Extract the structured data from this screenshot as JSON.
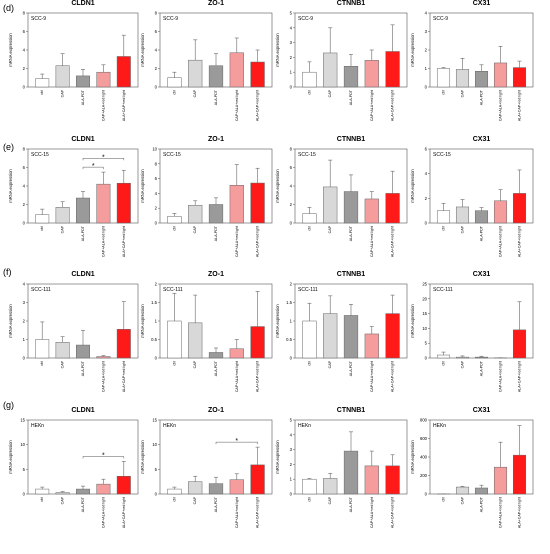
{
  "row_labels": [
    "(d)",
    "(e)",
    "(f)",
    "(g)"
  ],
  "categories": [
    "ctrl",
    "CAP",
    "ALA-PDT",
    "CAP+ALA+red light",
    "ALA+CAP+red light"
  ],
  "ylabel": "mRNA expression",
  "colors": [
    "#ffffff",
    "#d8d8d8",
    "#9a9a9a",
    "#f59c9c",
    "#ff1a1a"
  ],
  "chart_data": [
    {
      "type": "bar",
      "row": 0,
      "col": 0,
      "title": "CLDN1",
      "line": "SCC-9",
      "categories": [
        "ctrl",
        "CAP",
        "ALA-PDT",
        "CAP+ALA+red light",
        "ALA+CAP+red light"
      ],
      "values": [
        0.9,
        2.3,
        1.2,
        1.6,
        3.3
      ],
      "errors": [
        0.5,
        1.3,
        0.7,
        0.8,
        2.3
      ],
      "ylim": [
        0,
        8
      ],
      "yticks": [
        0,
        2,
        4,
        6,
        8
      ],
      "sig": []
    },
    {
      "type": "bar",
      "row": 0,
      "col": 1,
      "title": "ZO-1",
      "line": "SCC-9",
      "categories": [
        "ctrl",
        "CAP",
        "ALA-PDT",
        "CAP+ALA+red light",
        "ALA+CAP+red light"
      ],
      "values": [
        1.0,
        2.9,
        2.3,
        3.7,
        2.7
      ],
      "errors": [
        0.6,
        2.2,
        1.3,
        1.6,
        1.3
      ],
      "ylim": [
        0,
        8
      ],
      "yticks": [
        0,
        2,
        4,
        6,
        8
      ],
      "sig": []
    },
    {
      "type": "bar",
      "row": 0,
      "col": 2,
      "title": "CTNNB1",
      "line": "SCC-9",
      "categories": [
        "ctrl",
        "CAP",
        "ALA-PDT",
        "CAP+ALA+red light",
        "ALA+CAP+red light"
      ],
      "values": [
        1.0,
        2.3,
        1.4,
        1.8,
        2.4
      ],
      "errors": [
        0.7,
        1.7,
        0.8,
        0.7,
        1.8
      ],
      "ylim": [
        0,
        5
      ],
      "yticks": [
        0,
        1,
        2,
        3,
        4,
        5
      ],
      "sig": []
    },
    {
      "type": "bar",
      "row": 0,
      "col": 3,
      "title": "CX31",
      "line": "SCC-9",
      "categories": [
        "ctrl",
        "CAP",
        "ALA-PDT",
        "CAP+ALA+red light",
        "ALA+CAP+red light"
      ],
      "values": [
        1.0,
        0.95,
        0.85,
        1.3,
        1.05
      ],
      "errors": [
        0.05,
        0.6,
        0.35,
        0.9,
        0.35
      ],
      "ylim": [
        0,
        4
      ],
      "yticks": [
        0,
        1,
        2,
        3,
        4
      ],
      "sig": []
    },
    {
      "type": "bar",
      "row": 1,
      "col": 0,
      "title": "CLDN1",
      "line": "SCC-15",
      "categories": [
        "ctrl",
        "CAP",
        "ALA-PDT",
        "CAP+ALA+red light",
        "ALA+CAP+red light"
      ],
      "values": [
        0.9,
        1.7,
        2.7,
        4.2,
        4.3
      ],
      "errors": [
        0.6,
        0.6,
        0.7,
        1.3,
        1.4
      ],
      "ylim": [
        0,
        8
      ],
      "yticks": [
        0,
        2,
        4,
        6,
        8
      ],
      "sig": [
        [
          2,
          3
        ],
        [
          2,
          4
        ]
      ]
    },
    {
      "type": "bar",
      "row": 1,
      "col": 1,
      "title": "ZO-1",
      "line": "SCC-15",
      "categories": [
        "ctrl",
        "CAP",
        "ALA-PDT",
        "CAP+ALA+red light",
        "ALA+CAP+red light"
      ],
      "values": [
        0.9,
        2.4,
        2.5,
        5.1,
        5.4
      ],
      "errors": [
        0.4,
        0.6,
        0.9,
        2.8,
        2.0
      ],
      "ylim": [
        0,
        10
      ],
      "yticks": [
        0,
        2,
        4,
        6,
        8,
        10
      ],
      "sig": []
    },
    {
      "type": "bar",
      "row": 1,
      "col": 2,
      "title": "CTNNB1",
      "line": "SCC-15",
      "categories": [
        "ctrl",
        "CAP",
        "ALA-PDT",
        "CAP+ALA+red light",
        "ALA+CAP+red light"
      ],
      "values": [
        1.0,
        3.9,
        3.4,
        2.6,
        3.2
      ],
      "errors": [
        0.7,
        2.9,
        1.8,
        0.8,
        2.4
      ],
      "ylim": [
        0,
        8
      ],
      "yticks": [
        0,
        2,
        4,
        6,
        8
      ],
      "sig": []
    },
    {
      "type": "bar",
      "row": 1,
      "col": 3,
      "title": "CX31",
      "line": "SCC-15",
      "categories": [
        "ctrl",
        "CAP",
        "ALA-PDT",
        "CAP+ALA+red light",
        "ALA+CAP+red light"
      ],
      "values": [
        1.0,
        1.3,
        1.0,
        1.8,
        2.4
      ],
      "errors": [
        0.6,
        0.6,
        0.25,
        0.9,
        1.9
      ],
      "ylim": [
        0,
        6
      ],
      "yticks": [
        0,
        2,
        4,
        6
      ],
      "sig": []
    },
    {
      "type": "bar",
      "row": 2,
      "col": 0,
      "title": "CLDN1",
      "line": "SCC-111",
      "categories": [
        "ctrl",
        "CAP",
        "ALA-PDT",
        "CAP+ALA+red light",
        "ALA+CAP+red light"
      ],
      "values": [
        1.0,
        0.85,
        0.7,
        0.08,
        1.55
      ],
      "errors": [
        0.95,
        0.3,
        0.8,
        0.05,
        1.5
      ],
      "ylim": [
        0,
        4
      ],
      "yticks": [
        0,
        1,
        2,
        3,
        4
      ],
      "sig": []
    },
    {
      "type": "bar",
      "row": 2,
      "col": 1,
      "title": "ZO-1",
      "line": "SCC-111",
      "categories": [
        "ctrl",
        "CAP",
        "ALA-PDT",
        "CAP+ALA+red light",
        "ALA+CAP+red light"
      ],
      "values": [
        1.0,
        0.95,
        0.15,
        0.25,
        0.85
      ],
      "errors": [
        0.75,
        0.75,
        0.12,
        0.25,
        0.95
      ],
      "ylim": [
        0,
        2.0
      ],
      "yticks": [
        0,
        0.5,
        1.0,
        1.5,
        2.0
      ],
      "sig": []
    },
    {
      "type": "bar",
      "row": 2,
      "col": 2,
      "title": "CTNNB1",
      "line": "SCC-111",
      "categories": [
        "ctrl",
        "CAP",
        "ALA-PDT",
        "CAP+ALA+red light",
        "ALA+CAP+red light"
      ],
      "values": [
        1.0,
        1.2,
        1.15,
        0.65,
        1.2
      ],
      "errors": [
        0.48,
        0.48,
        0.3,
        0.2,
        0.5
      ],
      "ylim": [
        0,
        2.0
      ],
      "yticks": [
        0,
        0.5,
        1.0,
        1.5,
        2.0
      ],
      "sig": []
    },
    {
      "type": "bar",
      "row": 2,
      "col": 3,
      "title": "CX31",
      "line": "SCC-111",
      "categories": [
        "ctrl",
        "CAP",
        "ALA-PDT",
        "CAP+ALA+red light",
        "ALA+CAP+red light"
      ],
      "values": [
        1.0,
        0.3,
        0.3,
        0.05,
        9.5
      ],
      "errors": [
        1.0,
        0.4,
        0.3,
        0.05,
        9.5
      ],
      "ylim": [
        0,
        25
      ],
      "yticks": [
        0,
        5,
        10,
        15,
        20,
        25
      ],
      "sig": []
    },
    {
      "type": "bar",
      "row": 3,
      "col": 0,
      "title": "CLDN1",
      "line": "HEKn",
      "categories": [
        "ctrl",
        "CAP",
        "ALA-PDT",
        "CAP+ALA+red light",
        "ALA+CAP+red light"
      ],
      "values": [
        1.0,
        0.3,
        1.0,
        2.0,
        3.6
      ],
      "errors": [
        0.4,
        0.2,
        0.6,
        1.0,
        3.0
      ],
      "ylim": [
        0,
        15
      ],
      "yticks": [
        0,
        5,
        10,
        15
      ],
      "sig": [
        [
          2,
          4
        ]
      ]
    },
    {
      "type": "bar",
      "row": 3,
      "col": 1,
      "title": "ZO-1",
      "line": "HEKn",
      "categories": [
        "ctrl",
        "CAP",
        "ALA-PDT",
        "CAP+ALA+red light",
        "ALA+CAP+red light"
      ],
      "values": [
        1.0,
        2.5,
        2.1,
        2.9,
        5.9
      ],
      "errors": [
        0.4,
        1.1,
        1.3,
        1.2,
        3.6
      ],
      "ylim": [
        0,
        15
      ],
      "yticks": [
        0,
        5,
        10,
        15
      ],
      "sig": [
        [
          2,
          4
        ]
      ]
    },
    {
      "type": "bar",
      "row": 3,
      "col": 2,
      "title": "CTNNB1",
      "line": "HEKn",
      "categories": [
        "ctrl",
        "CAP",
        "ALA-PDT",
        "CAP+ALA+red light",
        "ALA+CAP+red light"
      ],
      "values": [
        1.0,
        1.05,
        2.9,
        1.9,
        1.9
      ],
      "errors": [
        0.05,
        0.35,
        1.3,
        1.0,
        0.75
      ],
      "ylim": [
        0,
        5
      ],
      "yticks": [
        0,
        1,
        2,
        3,
        4,
        5
      ],
      "sig": []
    },
    {
      "type": "bar",
      "row": 3,
      "col": 3,
      "title": "CX31",
      "line": "HEKn",
      "categories": [
        "ctrl",
        "CAP",
        "ALA-PDT",
        "CAP+ALA+red light",
        "ALA+CAP+red light"
      ],
      "values": [
        1.0,
        75,
        65,
        290,
        420
      ],
      "errors": [
        0.5,
        8,
        30,
        270,
        320
      ],
      "ylim": [
        0,
        800
      ],
      "yticks": [
        0,
        200,
        400,
        600,
        800
      ],
      "sig": []
    }
  ]
}
